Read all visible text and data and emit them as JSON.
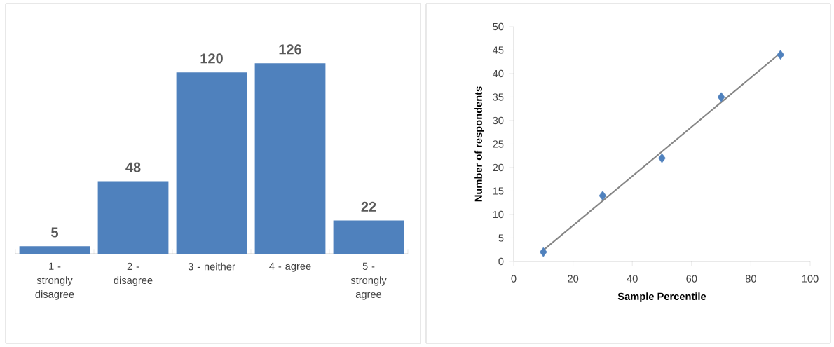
{
  "chart_data": [
    {
      "type": "bar",
      "categories": [
        "1 - strongly disagree",
        "2 - disagree",
        "3 - neither",
        "4 - agree",
        "5 - strongly agree"
      ],
      "values": [
        5,
        48,
        120,
        126,
        22
      ],
      "color": "#4f81bd",
      "data_labels": true
    },
    {
      "type": "scatter",
      "xlabel": "Sample Percentile",
      "ylabel": "Number of respondents",
      "xlim": [
        0,
        100
      ],
      "ylim": [
        0,
        50
      ],
      "xticks": [
        0,
        20,
        40,
        60,
        80,
        100
      ],
      "yticks": [
        0,
        5,
        10,
        15,
        20,
        25,
        30,
        35,
        40,
        45,
        50
      ],
      "series": [
        {
          "type": "scatter",
          "color": "#4f81bd",
          "marker": "diamond",
          "x": [
            10,
            30,
            50,
            70,
            90
          ],
          "values": [
            2,
            14,
            22,
            35,
            44
          ]
        },
        {
          "type": "line",
          "color": "#868686",
          "marker": "none",
          "x": [
            10,
            90
          ],
          "values": [
            2.4,
            44.4
          ]
        }
      ]
    }
  ]
}
